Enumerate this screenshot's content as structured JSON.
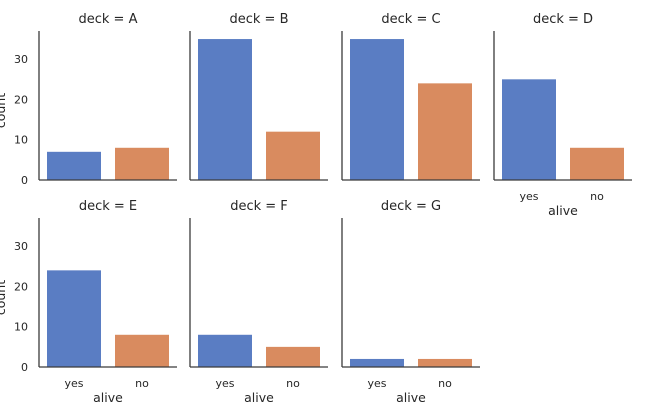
{
  "chart_data": {
    "type": "bar",
    "facet_by": "deck",
    "col_wrap": 4,
    "xlabel": "alive",
    "ylabel": "count",
    "categories": [
      "yes",
      "no"
    ],
    "ylim": [
      0,
      37
    ],
    "yticks": [
      0,
      10,
      20,
      30
    ],
    "grid": false,
    "colors": {
      "yes": "#5a7dc3",
      "no": "#d98b5f"
    },
    "panels": [
      {
        "title": "deck = A",
        "values": [
          7,
          8
        ]
      },
      {
        "title": "deck = B",
        "values": [
          35,
          12
        ]
      },
      {
        "title": "deck = C",
        "values": [
          35,
          24
        ]
      },
      {
        "title": "deck = D",
        "values": [
          25,
          8
        ]
      },
      {
        "title": "deck = E",
        "values": [
          24,
          8
        ]
      },
      {
        "title": "deck = F",
        "values": [
          8,
          5
        ]
      },
      {
        "title": "deck = G",
        "values": [
          2,
          2
        ]
      }
    ]
  }
}
